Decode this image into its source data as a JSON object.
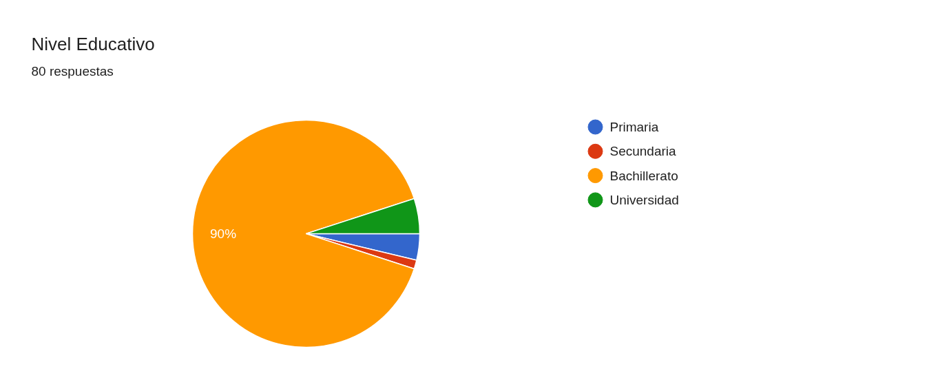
{
  "chart_data": {
    "type": "pie",
    "title": "Nivel Educativo",
    "subtitle": "80 respuestas",
    "categories": [
      "Primaria",
      "Secundaria",
      "Bachillerato",
      "Universidad"
    ],
    "values": [
      3.75,
      1.25,
      90,
      5
    ],
    "colors": [
      "#3366cc",
      "#dc3912",
      "#ff9900",
      "#109618"
    ],
    "value_labels": [
      null,
      null,
      "90%",
      null
    ],
    "legend": "right"
  }
}
